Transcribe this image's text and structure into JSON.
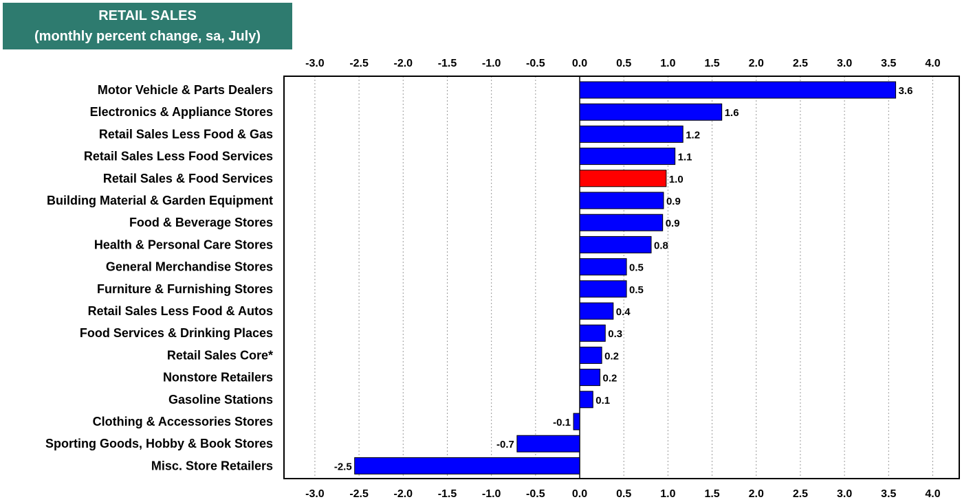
{
  "chart_data": {
    "type": "bar",
    "orientation": "horizontal",
    "title": "RETAIL SALES",
    "subtitle": "(monthly percent change, sa,  July)",
    "xlim": [
      -3.35,
      4.3
    ],
    "ticks": [
      "-3.0",
      "-2.5",
      "-2.0",
      "-1.5",
      "-1.0",
      "-0.5",
      "0.0",
      "0.5",
      "1.0",
      "1.5",
      "2.0",
      "2.5",
      "3.0",
      "3.5",
      "4.0"
    ],
    "grid": true,
    "categories": [
      "Motor Vehicle & Parts Dealers",
      "Electronics & Appliance Stores",
      "Retail Sales Less Food & Gas",
      "Retail Sales Less Food Services",
      "Retail Sales & Food Services",
      "Building Material & Garden Equipment",
      "Food & Beverage Stores",
      "Health & Personal Care Stores",
      "General Merchandise Stores",
      "Furniture & Furnishing Stores",
      "Retail Sales Less Food & Autos",
      "Food Services & Drinking Places",
      "Retail Sales Core*",
      "Nonstore Retailers",
      "Gasoline Stations",
      "Clothing & Accessories Stores",
      "Sporting Goods, Hobby & Book Stores",
      "Misc. Store Retailers"
    ],
    "values": [
      3.58,
      1.61,
      1.17,
      1.08,
      0.98,
      0.95,
      0.94,
      0.81,
      0.53,
      0.53,
      0.38,
      0.29,
      0.25,
      0.23,
      0.15,
      -0.07,
      -0.71,
      -2.55
    ],
    "labels": [
      "3.6",
      "1.6",
      "1.2",
      "1.1",
      "1.0",
      "0.9",
      "0.9",
      "0.8",
      "0.5",
      "0.5",
      "0.4",
      "0.3",
      "0.2",
      "0.2",
      "0.1",
      "-0.1",
      "-0.7",
      "-2.5"
    ],
    "highlight_index": 4,
    "colors": {
      "bar": "#0000ff",
      "highlight": "#ff0000",
      "title_bg": "#2e7b6f",
      "title_text": "#ffffff",
      "grid": "#999999"
    }
  }
}
